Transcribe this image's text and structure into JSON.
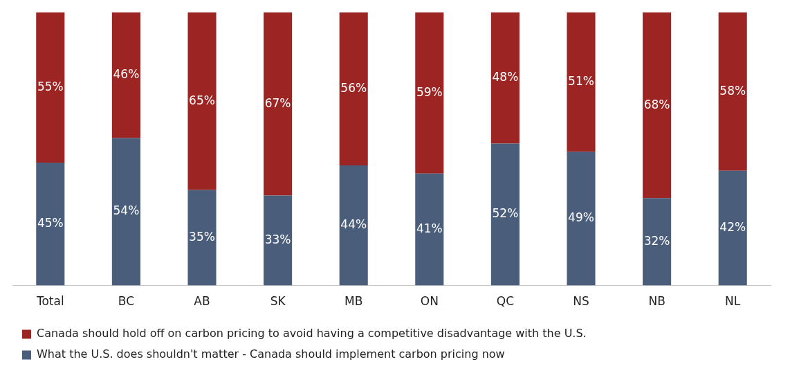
{
  "chart_data": {
    "type": "bar",
    "stacked": true,
    "grid": false,
    "legend": "bottom",
    "categories": [
      "Total",
      "BC",
      "AB",
      "SK",
      "MB",
      "ON",
      "QC",
      "NS",
      "NB",
      "NL"
    ],
    "series": [
      {
        "name": "What the U.S. does shouldn't matter - Canada should implement carbon pricing now",
        "color": "#4a5e7b",
        "values": [
          45,
          54,
          35,
          33,
          44,
          41,
          52,
          49,
          32,
          42
        ],
        "value_labels": [
          "45%",
          "54%",
          "35%",
          "33%",
          "44%",
          "41%",
          "52%",
          "49%",
          "32%",
          "42%"
        ]
      },
      {
        "name": "Canada should hold off on carbon pricing to avoid having a competitive disadvantage with the U.S.",
        "color": "#9c2523",
        "values": [
          55,
          46,
          65,
          67,
          56,
          59,
          48,
          51,
          68,
          58
        ],
        "value_labels": [
          "55%",
          "46%",
          "65%",
          "67%",
          "56%",
          "59%",
          "48%",
          "51%",
          "68%",
          "58%"
        ]
      }
    ]
  }
}
